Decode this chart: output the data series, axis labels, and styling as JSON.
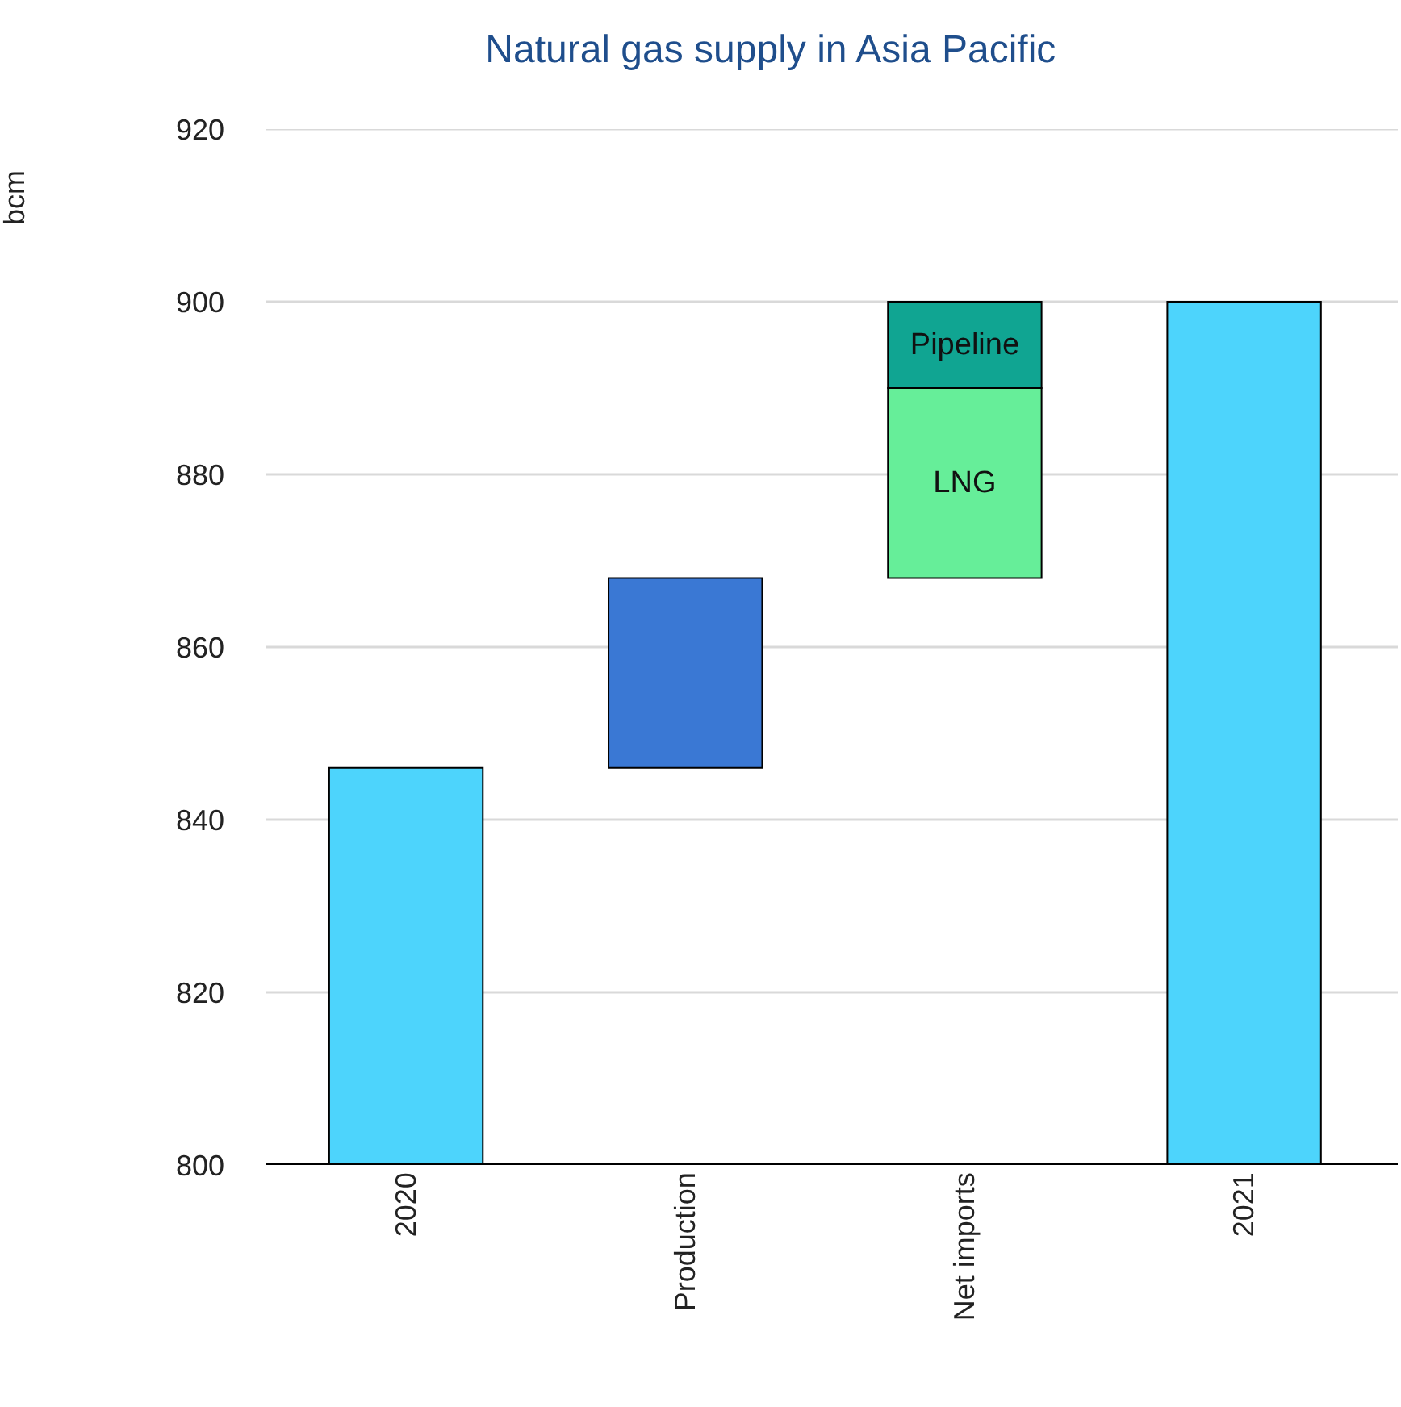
{
  "chart_data": {
    "type": "bar",
    "title": "Natural gas supply in Asia Pacific",
    "ylabel": "bcm",
    "categories": [
      "2020",
      "Production",
      "Net imports",
      "2021"
    ],
    "series": [
      {
        "colors": [
          "#4dd4fc",
          "#3a78d4",
          null,
          "#4dd4fc"
        ],
        "values": [
          46,
          22,
          null,
          100
        ],
        "base": [
          800,
          846,
          null,
          800
        ]
      },
      {
        "name": "LNG",
        "color": "#66ee99",
        "values": [
          null,
          null,
          22,
          null
        ],
        "base": [
          null,
          null,
          868,
          null
        ]
      },
      {
        "name": "Pipeline",
        "color": "#10a592",
        "values": [
          null,
          null,
          10,
          null
        ],
        "base": [
          null,
          null,
          890,
          null
        ]
      }
    ],
    "stacked": true,
    "ylim": [
      800,
      920
    ],
    "yticks": [
      800,
      820,
      840,
      860,
      880,
      900,
      920
    ],
    "grid": "y",
    "legend": false
  }
}
